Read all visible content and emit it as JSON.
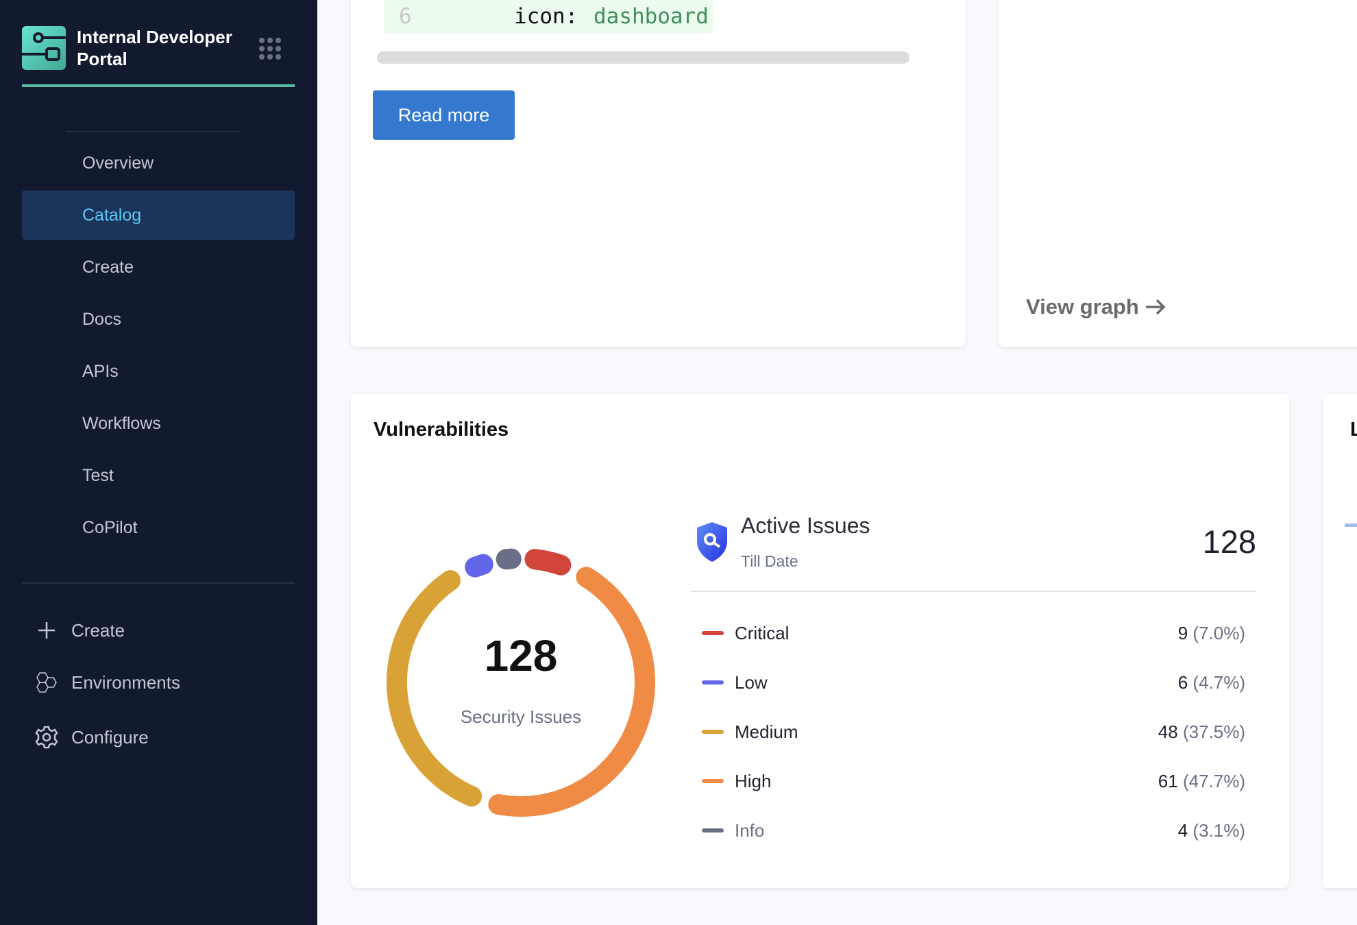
{
  "sidebar": {
    "brand": "Internal Developer Portal",
    "nav": [
      "Overview",
      "Catalog",
      "Create",
      "Docs",
      "APIs",
      "Workflows",
      "Test",
      "CoPilot"
    ],
    "selected": "Catalog",
    "bottom": [
      {
        "label": "Create",
        "icon": "plus-icon"
      },
      {
        "label": "Environments",
        "icon": "hexagons-icon"
      },
      {
        "label": "Configure",
        "icon": "gear-icon"
      }
    ]
  },
  "code": {
    "line_number": "6",
    "key": "icon:",
    "value": "dashboard"
  },
  "read_more": "Read more",
  "view_graph": "View graph",
  "partial_card_title": "L",
  "vuln": {
    "title": "Vulnerabilities",
    "total": "128",
    "total_label": "Security Issues",
    "active_title": "Active Issues",
    "active_sub": "Till Date",
    "active_count": "128"
  },
  "chart_data": {
    "type": "pie",
    "style": "donut",
    "total": 128,
    "series": [
      {
        "name": "Critical",
        "value": 9,
        "pct": "(7.0%)",
        "color": "#d2453a"
      },
      {
        "name": "Low",
        "value": 6,
        "pct": "(4.7%)",
        "color": "#6366e8"
      },
      {
        "name": "Medium",
        "value": 48,
        "pct": "(37.5%)",
        "color": "#d9a236"
      },
      {
        "name": "High",
        "value": 61,
        "pct": "(47.7%)",
        "color": "#ef8b44"
      },
      {
        "name": "Info",
        "value": 4,
        "pct": "(3.1%)",
        "color": "#6b6f85"
      }
    ]
  }
}
